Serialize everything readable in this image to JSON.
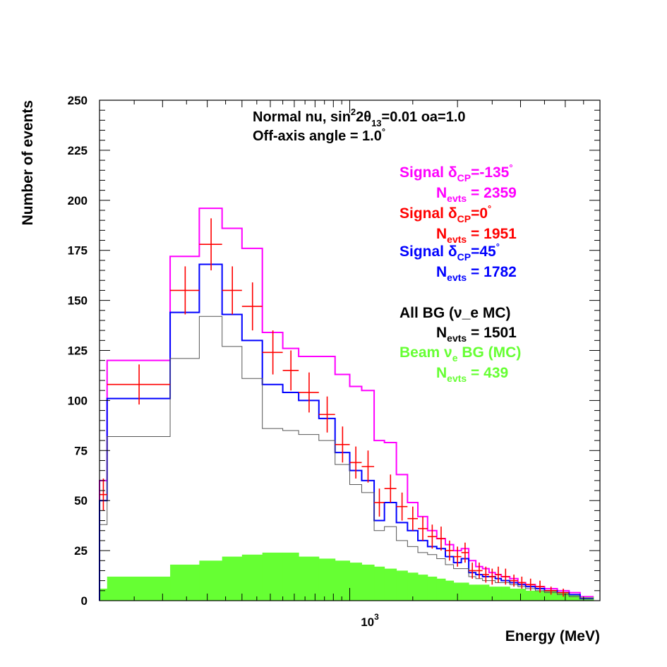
{
  "chart_data": {
    "type": "line",
    "xlabel": "Energy (MeV)",
    "ylabel": "Number of events",
    "xscale": "log",
    "xlim": [
      200,
      5000
    ],
    "ylim": [
      0,
      250
    ],
    "yticks": [
      0,
      25,
      50,
      75,
      100,
      125,
      150,
      175,
      200,
      225,
      250
    ],
    "xtick_label": {
      "base": "10",
      "exp": "3",
      "value": 1000
    },
    "header": {
      "line1": {
        "pre": "Normal nu, sin",
        "sup": "2",
        "mid": "2θ",
        "sub": "13",
        "post": "=0.01 oa=1.0"
      },
      "line2": {
        "pre": "Off-axis angle = 1.0",
        "sup": "°"
      }
    },
    "bin_edges": [
      200,
      210,
      315,
      380,
      440,
      500,
      570,
      650,
      720,
      820,
      910,
      1000,
      1080,
      1170,
      1250,
      1350,
      1450,
      1550,
      1650,
      1750,
      1850,
      1950,
      2050,
      2150,
      2250,
      2350,
      2450,
      2550,
      2650,
      2800,
      2950,
      3100,
      3300,
      3500,
      3800,
      4100,
      4400,
      4800,
      5000
    ],
    "series": [
      {
        "name": "Signal δCP=-135°",
        "style": "histogram",
        "color": "#ff00ff",
        "legend": {
          "l1_pre": "Signal ",
          "l1_greek": "δ",
          "l1_sub": "CP",
          "l1_post": "=-135",
          "l1_deg": "°",
          "l2_pre": "N",
          "l2_sub": "evts",
          "l2_post": " = 2359"
        },
        "values": [
          60,
          120,
          172,
          196,
          186,
          176,
          134,
          126,
          122,
          122,
          113,
          107,
          105,
          80,
          79,
          63,
          49,
          42,
          35,
          31,
          28,
          25,
          26,
          20,
          17,
          16,
          14,
          13,
          12,
          11,
          9,
          8,
          7,
          6,
          5,
          4,
          2
        ]
      },
      {
        "name": "Signal δCP=0°",
        "style": "errorbars",
        "color": "#ff0000",
        "legend": {
          "l1_pre": "Signal ",
          "l1_greek": "δ",
          "l1_sub": "CP",
          "l1_post": "=0",
          "l1_deg": "°",
          "l2_pre": "N",
          "l2_sub": "evts",
          "l2_post": " = 1951"
        },
        "points": [
          {
            "x": 205,
            "y": 53,
            "err": 8
          },
          {
            "x": 258,
            "y": 108,
            "err": 10
          },
          {
            "x": 347,
            "y": 155,
            "err": 12
          },
          {
            "x": 410,
            "y": 178,
            "err": 13
          },
          {
            "x": 470,
            "y": 155,
            "err": 12
          },
          {
            "x": 535,
            "y": 147,
            "err": 12
          },
          {
            "x": 610,
            "y": 124,
            "err": 11
          },
          {
            "x": 685,
            "y": 115,
            "err": 10
          },
          {
            "x": 770,
            "y": 104,
            "err": 10
          },
          {
            "x": 865,
            "y": 93,
            "err": 9
          },
          {
            "x": 955,
            "y": 78,
            "err": 9
          },
          {
            "x": 1040,
            "y": 69,
            "err": 8
          },
          {
            "x": 1125,
            "y": 67,
            "err": 8
          },
          {
            "x": 1210,
            "y": 49,
            "err": 7
          },
          {
            "x": 1300,
            "y": 56,
            "err": 7
          },
          {
            "x": 1400,
            "y": 47,
            "err": 7
          },
          {
            "x": 1500,
            "y": 41,
            "err": 6
          },
          {
            "x": 1600,
            "y": 36,
            "err": 6
          },
          {
            "x": 1700,
            "y": 32,
            "err": 6
          },
          {
            "x": 1800,
            "y": 31,
            "err": 6
          },
          {
            "x": 1900,
            "y": 25,
            "err": 5
          },
          {
            "x": 2000,
            "y": 22,
            "err": 5
          },
          {
            "x": 2100,
            "y": 24,
            "err": 5
          },
          {
            "x": 2200,
            "y": 15,
            "err": 4
          },
          {
            "x": 2300,
            "y": 15,
            "err": 4
          },
          {
            "x": 2400,
            "y": 13,
            "err": 4
          },
          {
            "x": 2500,
            "y": 12,
            "err": 4
          },
          {
            "x": 2600,
            "y": 13,
            "err": 4
          },
          {
            "x": 2725,
            "y": 12,
            "err": 4
          },
          {
            "x": 2875,
            "y": 10,
            "err": 3
          },
          {
            "x": 3025,
            "y": 9,
            "err": 3
          },
          {
            "x": 3200,
            "y": 8,
            "err": 3
          },
          {
            "x": 3400,
            "y": 7,
            "err": 3
          },
          {
            "x": 3650,
            "y": 5,
            "err": 2
          },
          {
            "x": 3950,
            "y": 4,
            "err": 2
          }
        ]
      },
      {
        "name": "Signal δCP=45°",
        "style": "histogram",
        "color": "#0000ff",
        "legend": {
          "l1_pre": "Signal ",
          "l1_greek": "δ",
          "l1_sub": "CP",
          "l1_post": "=45",
          "l1_deg": "°",
          "l2_pre": "N",
          "l2_sub": "evts",
          "l2_post": " = 1782"
        },
        "values": [
          50,
          101,
          144,
          168,
          143,
          130,
          108,
          104,
          100,
          91,
          74,
          65,
          60,
          40,
          49,
          39,
          35,
          30,
          27,
          26,
          22,
          19,
          21,
          14,
          13,
          12,
          12,
          11,
          10,
          9,
          8,
          7,
          6,
          5,
          4,
          3,
          1
        ]
      },
      {
        "name": "All BG (ν_e MC)",
        "style": "histogram",
        "color": "#555555",
        "legend": {
          "l1_pre": "All BG (",
          "l1_greek": "ν",
          "l1_sub": "",
          "l1_post": "_e MC)",
          "l1_deg": "",
          "l2_pre": "N",
          "l2_sub": "evts",
          "l2_post": " = 1501"
        },
        "values": [
          38,
          82,
          121,
          142,
          127,
          111,
          86,
          85,
          83,
          80,
          68,
          58,
          54,
          35,
          37,
          30,
          27,
          24,
          23,
          21,
          18,
          16,
          16,
          12,
          11,
          10,
          10,
          9,
          9,
          8,
          7,
          6,
          5,
          4,
          3,
          2,
          1
        ]
      },
      {
        "name": "Beam νe BG (MC)",
        "style": "filled",
        "color": "#66ff33",
        "legend": {
          "l1_pre": "Beam ",
          "l1_greek": "ν",
          "l1_sub": "e",
          "l1_post": " BG (MC)",
          "l1_deg": "",
          "l2_pre": "N",
          "l2_sub": "evts",
          "l2_post": " = 439"
        },
        "values": [
          6,
          12,
          18,
          20,
          22,
          23,
          24,
          24,
          22,
          21,
          20,
          19,
          18,
          17,
          16,
          15,
          14,
          13,
          12,
          11,
          10,
          9,
          9,
          8,
          8,
          8,
          7,
          7,
          7,
          6,
          6,
          5,
          5,
          5,
          4,
          3,
          2
        ]
      }
    ]
  }
}
